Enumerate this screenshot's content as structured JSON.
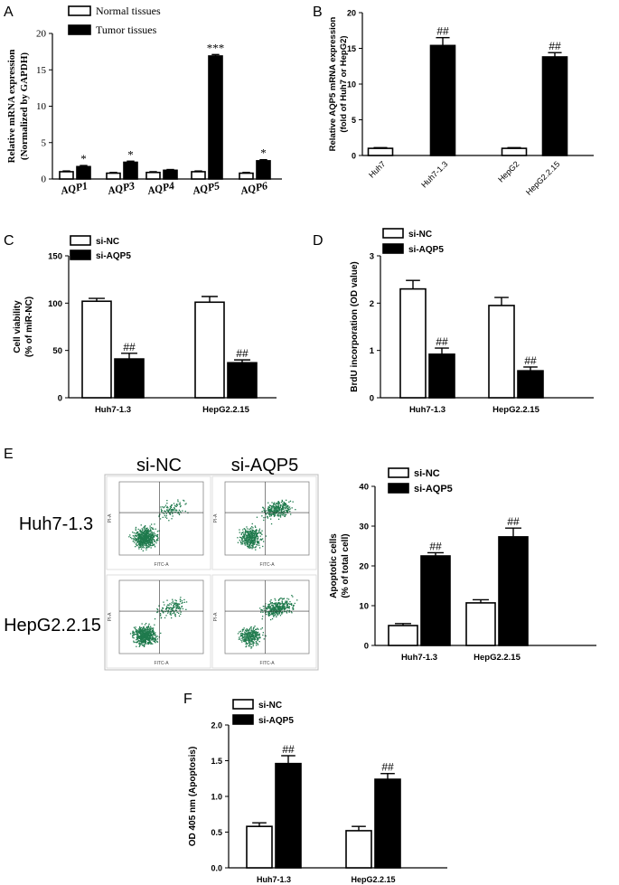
{
  "chart_data": [
    {
      "panel": "A",
      "type": "bar",
      "categories": [
        "AQP1",
        "AQP3",
        "AQP4",
        "AQP5",
        "AQP6"
      ],
      "series": [
        {
          "name": "Normal tissues",
          "values": [
            1.0,
            0.8,
            0.9,
            1.0,
            0.8
          ],
          "errors": [
            0.1,
            0.1,
            0.1,
            0.1,
            0.1
          ]
        },
        {
          "name": "Tumor tissues",
          "values": [
            1.7,
            2.3,
            1.2,
            16.9,
            2.5
          ],
          "errors": [
            0.15,
            0.15,
            0.1,
            0.2,
            0.15
          ]
        }
      ],
      "annotations": [
        "*",
        "*",
        "",
        "***",
        "*"
      ],
      "ylabel": [
        "Relative mRNA expression",
        "(Normalized by GAPDH)"
      ],
      "ylim": [
        0,
        20
      ],
      "yticks": [
        0,
        5,
        10,
        15,
        20
      ],
      "legend_position": "top"
    },
    {
      "panel": "B",
      "type": "bar",
      "categories": [
        "Huh7",
        "Huh7-1.3",
        "HepG2",
        "HepG2.2.15"
      ],
      "values": [
        1.0,
        15.4,
        1.0,
        13.8
      ],
      "errors": [
        0.1,
        1.1,
        0.1,
        0.6
      ],
      "fills": [
        "white",
        "black",
        "white",
        "black"
      ],
      "annotations": [
        "",
        "##",
        "",
        "##"
      ],
      "ylabel": [
        "Relative AQP5 mRNA expression",
        "(fold of Huh7 or HepG2)"
      ],
      "ylim": [
        0,
        20
      ],
      "yticks": [
        0,
        5,
        10,
        15,
        20
      ]
    },
    {
      "panel": "C",
      "type": "bar",
      "categories": [
        "Huh7-1.3",
        "HepG2.2.15"
      ],
      "series": [
        {
          "name": "si-NC",
          "values": [
            102,
            101
          ],
          "errors": [
            3,
            6
          ]
        },
        {
          "name": "si-AQP5",
          "values": [
            41,
            37
          ],
          "errors": [
            6,
            3
          ]
        }
      ],
      "annotations": [
        "##",
        "##"
      ],
      "ylabel": [
        "Cell viability",
        "(% of miR-NC)"
      ],
      "ylim": [
        0,
        150
      ],
      "yticks": [
        0,
        50,
        100,
        150
      ],
      "legend_position": "top-left"
    },
    {
      "panel": "D",
      "type": "bar",
      "categories": [
        "Huh7-1.3",
        "HepG2.2.15"
      ],
      "series": [
        {
          "name": "si-NC",
          "values": [
            2.3,
            1.95
          ],
          "errors": [
            0.18,
            0.17
          ]
        },
        {
          "name": "si-AQP5",
          "values": [
            0.92,
            0.57
          ],
          "errors": [
            0.13,
            0.08
          ]
        }
      ],
      "annotations": [
        "##",
        "##"
      ],
      "ylabel": [
        "BrdU incorporation (OD value)"
      ],
      "ylim": [
        0,
        3
      ],
      "yticks": [
        0,
        1,
        2,
        3
      ],
      "legend_position": "top-left"
    },
    {
      "panel": "E",
      "type": "bar",
      "categories": [
        "Huh7-1.3",
        "HepG2.2.15"
      ],
      "series": [
        {
          "name": "si-NC",
          "values": [
            5.0,
            10.7
          ],
          "errors": [
            0.5,
            0.8
          ]
        },
        {
          "name": "si-AQP5",
          "values": [
            22.5,
            27.3
          ],
          "errors": [
            0.8,
            2.2
          ]
        }
      ],
      "annotations": [
        "##",
        "##"
      ],
      "ylabel": [
        "Apoptotic cells",
        "(% of total cell)"
      ],
      "ylim": [
        0,
        40
      ],
      "yticks": [
        0,
        10,
        20,
        30,
        40
      ],
      "legend_position": "top-left"
    },
    {
      "panel": "F",
      "type": "bar",
      "categories": [
        "Huh7-1.3",
        "HepG2.2.15"
      ],
      "series": [
        {
          "name": "si-NC",
          "values": [
            0.58,
            0.52
          ],
          "errors": [
            0.05,
            0.06
          ]
        },
        {
          "name": "si-AQP5",
          "values": [
            1.46,
            1.24
          ],
          "errors": [
            0.11,
            0.08
          ]
        }
      ],
      "annotations": [
        "##",
        "##"
      ],
      "ylabel": [
        "OD 405 nm (Apoptosis)"
      ],
      "ylim": [
        0,
        2.0
      ],
      "yticks": [
        0.0,
        0.5,
        1.0,
        1.5,
        2.0
      ],
      "ytick_labels": [
        "0.0",
        "0.5",
        "1.0",
        "1.5",
        "2.0"
      ],
      "legend_position": "top-left"
    }
  ],
  "flow": {
    "col_labels": [
      "si-NC",
      "si-AQP5"
    ],
    "row_labels": [
      "Huh7-1.3",
      "HepG2.2.15"
    ],
    "x_axis_label": "FITC-A",
    "y_axis_label": "PI-A",
    "dot_color": "#1f7a4d"
  },
  "panel_letters": [
    "A",
    "B",
    "C",
    "D",
    "E",
    "F"
  ]
}
